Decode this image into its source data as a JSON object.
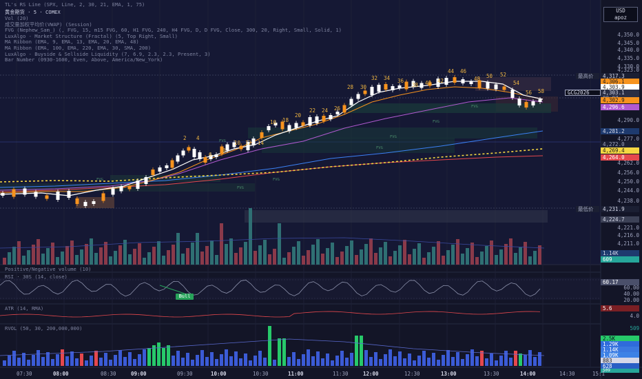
{
  "header": {
    "title": "TL's RS Line (SPX, Line, 2, 30, 21, EMA, 1, 75)",
    "symbol_line": "黄金期货 · 5 · COMEX",
    "indicators": [
      "Vol (20)",
      "成交量加权平均价(VWAP) (Session)",
      "FVG (Nephew_Sam_) (, FVG, 15, m15 FVG, 60, H1 FVG, 240, H4 FVG, D, D FVG, Close, 300, 20, Right, Small, Solid, 1)",
      "LuxAlgo - Market Structure (Fractal) (5, Top Right, Small)",
      "MA Ribbon (EMA, 9, EMA, 13, EMA, 20, EMA, 48)",
      "MA Ribbon (EMA, 100, EMA, 220, EMA, 30, SMA, 200)",
      "LuxAlgo - Buyside & Sellside Liquidity (7, 6.9, 2.3, 2.3, Present, 3)",
      "Bar Number (0930-1600, Even, Above, America/New_York)"
    ]
  },
  "currency": {
    "code": "USD",
    "unit": "apoz"
  },
  "price_axis": {
    "ticks": [
      "4,350.0",
      "4,345.0",
      "4,340.0",
      "4,335.0",
      "4,330.0",
      "4,323.0",
      "4,310.0",
      "4,290.0",
      "4,277.0",
      "4,262.0",
      "4,256.0",
      "4,250.0",
      "4,244.0",
      "4,238.0",
      "4,221.0",
      "4,216.0",
      "4,211.0"
    ],
    "tags": {
      "high_label": "最高价",
      "high_value": "4,317.3",
      "p1": "4,306.1",
      "p2": "4,303.9",
      "p3": "4,303.1",
      "countdown": "00:07",
      "p4": "4,302.9",
      "symbol_tag": "GCG2026",
      "p5": "4,296.6",
      "p6": "4,281.2",
      "p7": "4,272.0",
      "p8": "4,269.4",
      "p9": "4,264.0",
      "low_label": "最低价",
      "low_value": "4,231.9",
      "p10": "4,224.7",
      "vol1": "1.14K",
      "vol2": "609"
    }
  },
  "bar_numbers": [
    "2",
    "4",
    "6",
    "8",
    "10",
    "12",
    "14",
    "16",
    "18",
    "20",
    "22",
    "24",
    "26",
    "28",
    "30",
    "32",
    "34",
    "36",
    "38",
    "40",
    "42",
    "44",
    "46",
    "48",
    "50",
    "52",
    "54",
    "56",
    "58"
  ],
  "panes": {
    "pnv": {
      "title": "Positive/Negative volume (10)"
    },
    "rsi": {
      "title": "RSI · 30S (14, close)",
      "value": "60.17",
      "ticks": [
        "60.00",
        "40.00",
        "20.00"
      ],
      "label": "Bull"
    },
    "atr": {
      "title": "ATR (14, RMA)",
      "value": "5.6",
      "ticks": [
        "4.0"
      ]
    },
    "rvol": {
      "title": "RVOL (50, 30, 200,000,000)",
      "top_value": "509",
      "tags": [
        "2.5K",
        "1.29K",
        "1.14K",
        "1.09K",
        "883",
        "628",
        "509"
      ]
    }
  },
  "time_axis": {
    "labels": [
      "07:30",
      "08:00",
      "08:30",
      "09:00",
      "09:30",
      "10:00",
      "10:30",
      "11:00",
      "11:30",
      "12:00",
      "12:30",
      "13:00",
      "13:30",
      "14:00",
      "14:30",
      "15:1"
    ]
  },
  "zones": [
    "FVG",
    "FVG",
    "FVG",
    "FVG",
    "FVG",
    "FVG",
    "FVG",
    "FVG"
  ],
  "colors": {
    "background": "#131527",
    "bull_candle": "#ffffff",
    "bear_candle": "#f7931e",
    "volume_up": "#26a69a",
    "volume_down": "#ef5350",
    "ma_white": "#ffffff",
    "ma_orange": "#f7931e",
    "ma_yellow": "#f5d742",
    "ma_purple": "#b15ad1",
    "ma_blue": "#3b82f6",
    "ma_red": "#e5484d"
  }
}
